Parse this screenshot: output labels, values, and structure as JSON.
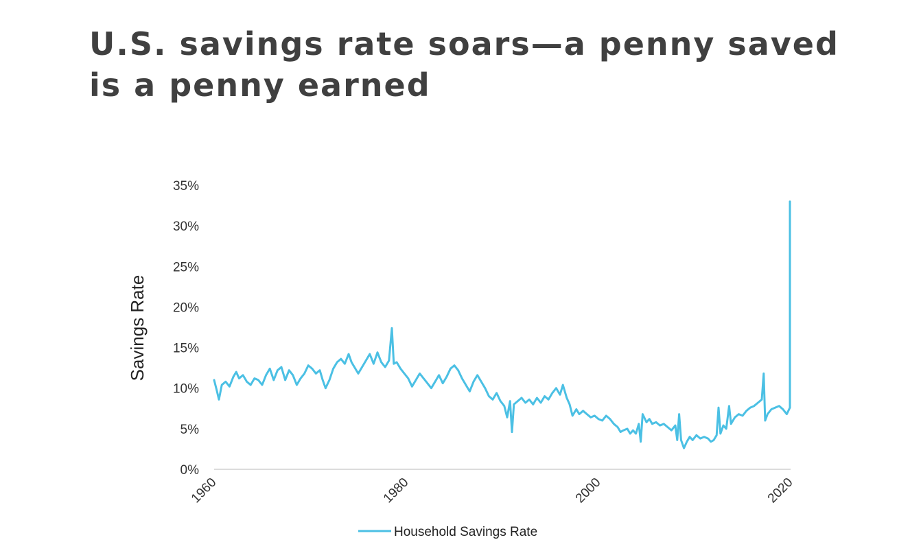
{
  "slide": {
    "title": "U.S. savings rate soars—a penny saved is a penny earned"
  },
  "chart_data": {
    "type": "line",
    "ylabel": "Savings Rate",
    "xlabel": "",
    "ylim": [
      0,
      35
    ],
    "xlim": [
      1960,
      2020
    ],
    "y_ticks": [
      "0%",
      "5%",
      "10%",
      "15%",
      "20%",
      "25%",
      "30%",
      "35%"
    ],
    "y_tick_values": [
      0,
      5,
      10,
      15,
      20,
      25,
      30,
      35
    ],
    "x_ticks": [
      "1960",
      "1980",
      "2000",
      "2020"
    ],
    "x_tick_values": [
      1960,
      1980,
      2000,
      2020
    ],
    "grid": false,
    "legend_position": "bottom",
    "series": [
      {
        "name": "Household Savings Rate",
        "color": "#4bc0e4",
        "points": [
          [
            1960.0,
            11.0
          ],
          [
            1960.3,
            9.6
          ],
          [
            1960.5,
            8.6
          ],
          [
            1960.8,
            10.4
          ],
          [
            1961.2,
            10.8
          ],
          [
            1961.6,
            10.2
          ],
          [
            1962.0,
            11.4
          ],
          [
            1962.3,
            12.0
          ],
          [
            1962.6,
            11.2
          ],
          [
            1963.0,
            11.6
          ],
          [
            1963.4,
            10.8
          ],
          [
            1963.8,
            10.4
          ],
          [
            1964.2,
            11.2
          ],
          [
            1964.6,
            11.0
          ],
          [
            1965.0,
            10.4
          ],
          [
            1965.4,
            11.6
          ],
          [
            1965.8,
            12.4
          ],
          [
            1966.2,
            11.0
          ],
          [
            1966.6,
            12.2
          ],
          [
            1967.0,
            12.6
          ],
          [
            1967.4,
            11.0
          ],
          [
            1967.8,
            12.2
          ],
          [
            1968.2,
            11.6
          ],
          [
            1968.6,
            10.4
          ],
          [
            1969.0,
            11.2
          ],
          [
            1969.4,
            11.8
          ],
          [
            1969.8,
            12.8
          ],
          [
            1970.2,
            12.4
          ],
          [
            1970.6,
            11.8
          ],
          [
            1971.0,
            12.2
          ],
          [
            1971.3,
            11.0
          ],
          [
            1971.6,
            10.0
          ],
          [
            1972.0,
            11.0
          ],
          [
            1972.4,
            12.4
          ],
          [
            1972.8,
            13.2
          ],
          [
            1973.2,
            13.6
          ],
          [
            1973.6,
            13.0
          ],
          [
            1974.0,
            14.2
          ],
          [
            1974.3,
            13.2
          ],
          [
            1974.6,
            12.6
          ],
          [
            1975.0,
            11.8
          ],
          [
            1975.4,
            12.6
          ],
          [
            1975.8,
            13.4
          ],
          [
            1976.2,
            14.2
          ],
          [
            1976.6,
            13.0
          ],
          [
            1977.0,
            14.4
          ],
          [
            1977.4,
            13.2
          ],
          [
            1977.8,
            12.6
          ],
          [
            1978.2,
            13.4
          ],
          [
            1978.5,
            17.4
          ],
          [
            1978.7,
            13.0
          ],
          [
            1979.0,
            13.2
          ],
          [
            1979.4,
            12.4
          ],
          [
            1979.8,
            11.8
          ],
          [
            1980.2,
            11.2
          ],
          [
            1980.6,
            10.2
          ],
          [
            1981.0,
            11.0
          ],
          [
            1981.4,
            11.8
          ],
          [
            1981.8,
            11.2
          ],
          [
            1982.2,
            10.6
          ],
          [
            1982.6,
            10.0
          ],
          [
            1983.0,
            10.8
          ],
          [
            1983.4,
            11.6
          ],
          [
            1983.8,
            10.6
          ],
          [
            1984.2,
            11.4
          ],
          [
            1984.6,
            12.4
          ],
          [
            1985.0,
            12.8
          ],
          [
            1985.4,
            12.2
          ],
          [
            1985.8,
            11.2
          ],
          [
            1986.2,
            10.4
          ],
          [
            1986.6,
            9.6
          ],
          [
            1987.0,
            10.8
          ],
          [
            1987.4,
            11.6
          ],
          [
            1987.8,
            10.8
          ],
          [
            1988.2,
            10.0
          ],
          [
            1988.6,
            9.0
          ],
          [
            1989.0,
            8.6
          ],
          [
            1989.4,
            9.4
          ],
          [
            1989.8,
            8.4
          ],
          [
            1990.2,
            7.8
          ],
          [
            1990.5,
            6.4
          ],
          [
            1990.8,
            8.4
          ],
          [
            1991.0,
            4.6
          ],
          [
            1991.2,
            8.0
          ],
          [
            1991.6,
            8.4
          ],
          [
            1992.0,
            8.8
          ],
          [
            1992.4,
            8.2
          ],
          [
            1992.8,
            8.6
          ],
          [
            1993.2,
            8.0
          ],
          [
            1993.6,
            8.8
          ],
          [
            1994.0,
            8.2
          ],
          [
            1994.4,
            9.0
          ],
          [
            1994.8,
            8.6
          ],
          [
            1995.2,
            9.4
          ],
          [
            1995.6,
            10.0
          ],
          [
            1996.0,
            9.2
          ],
          [
            1996.3,
            10.4
          ],
          [
            1996.7,
            8.8
          ],
          [
            1997.0,
            8.0
          ],
          [
            1997.3,
            6.6
          ],
          [
            1997.7,
            7.4
          ],
          [
            1998.0,
            6.8
          ],
          [
            1998.4,
            7.2
          ],
          [
            1998.8,
            6.8
          ],
          [
            1999.2,
            6.4
          ],
          [
            1999.6,
            6.6
          ],
          [
            2000.0,
            6.2
          ],
          [
            2000.4,
            6.0
          ],
          [
            2000.8,
            6.6
          ],
          [
            2001.2,
            6.2
          ],
          [
            2001.6,
            5.6
          ],
          [
            2002.0,
            5.2
          ],
          [
            2002.3,
            4.6
          ],
          [
            2002.6,
            4.8
          ],
          [
            2003.0,
            5.0
          ],
          [
            2003.3,
            4.4
          ],
          [
            2003.6,
            4.8
          ],
          [
            2003.9,
            4.4
          ],
          [
            2004.2,
            5.6
          ],
          [
            2004.4,
            3.4
          ],
          [
            2004.6,
            6.8
          ],
          [
            2005.0,
            5.8
          ],
          [
            2005.3,
            6.2
          ],
          [
            2005.6,
            5.6
          ],
          [
            2006.0,
            5.8
          ],
          [
            2006.4,
            5.4
          ],
          [
            2006.8,
            5.6
          ],
          [
            2007.2,
            5.2
          ],
          [
            2007.6,
            4.8
          ],
          [
            2008.0,
            5.4
          ],
          [
            2008.2,
            3.6
          ],
          [
            2008.4,
            6.8
          ],
          [
            2008.6,
            3.6
          ],
          [
            2008.9,
            2.6
          ],
          [
            2009.2,
            3.4
          ],
          [
            2009.5,
            4.0
          ],
          [
            2009.8,
            3.6
          ],
          [
            2010.2,
            4.2
          ],
          [
            2010.6,
            3.8
          ],
          [
            2011.0,
            4.0
          ],
          [
            2011.4,
            3.8
          ],
          [
            2011.7,
            3.4
          ],
          [
            2012.0,
            3.6
          ],
          [
            2012.3,
            4.2
          ],
          [
            2012.5,
            7.6
          ],
          [
            2012.7,
            4.4
          ],
          [
            2013.0,
            5.4
          ],
          [
            2013.3,
            5.0
          ],
          [
            2013.6,
            7.8
          ],
          [
            2013.8,
            5.6
          ],
          [
            2014.2,
            6.4
          ],
          [
            2014.6,
            6.8
          ],
          [
            2015.0,
            6.6
          ],
          [
            2015.4,
            7.2
          ],
          [
            2015.8,
            7.6
          ],
          [
            2016.2,
            7.8
          ],
          [
            2016.6,
            8.2
          ],
          [
            2017.0,
            8.6
          ],
          [
            2017.2,
            11.8
          ],
          [
            2017.35,
            6.0
          ],
          [
            2017.6,
            6.8
          ],
          [
            2018.0,
            7.4
          ],
          [
            2018.4,
            7.6
          ],
          [
            2018.8,
            7.8
          ],
          [
            2019.2,
            7.4
          ],
          [
            2019.6,
            6.8
          ],
          [
            2020.0,
            7.6
          ],
          [
            2020.4,
            8.0
          ],
          [
            2020.8,
            8.6
          ],
          [
            2021.1,
            8.0
          ],
          [
            2021.4,
            8.2
          ],
          [
            2021.65,
            9.0
          ],
          [
            2021.7,
            33.0
          ],
          [
            2021.75,
            23.0
          ]
        ]
      }
    ]
  }
}
